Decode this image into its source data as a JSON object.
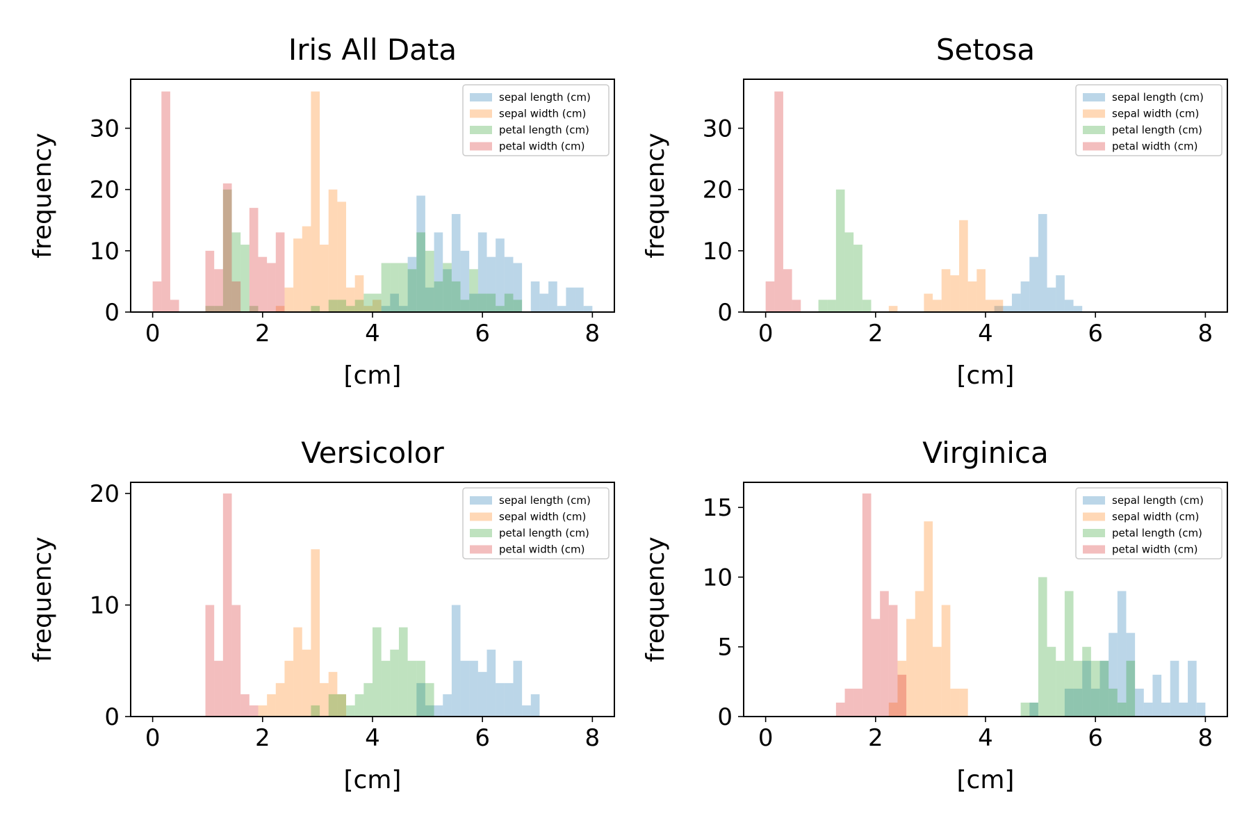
{
  "figure": {
    "series_colors": [
      "#1f77b4",
      "#ff7f0e",
      "#2ca02c",
      "#d62728"
    ],
    "bar_alpha": 0.3
  },
  "chart_data": [
    {
      "type": "bar",
      "title": "Iris All Data",
      "xlabel": "[cm]",
      "ylabel": "frequency",
      "xlim": [
        -0.4,
        8.4
      ],
      "ylim": [
        0,
        38
      ],
      "xticks": [
        "0",
        "2",
        "4",
        "6",
        "8"
      ],
      "yticks": [
        "0",
        "10",
        "20",
        "30"
      ],
      "bin_edges": [
        0,
        0.16,
        0.32,
        0.48,
        0.64,
        0.8,
        0.96,
        1.12,
        1.28,
        1.44,
        1.6,
        1.76,
        1.92,
        2.08,
        2.24,
        2.4,
        2.56,
        2.72,
        2.88,
        3.04,
        3.2,
        3.36,
        3.52,
        3.68,
        3.84,
        4.0,
        4.16,
        4.32,
        4.48,
        4.64,
        4.8,
        4.96,
        5.12,
        5.28,
        5.44,
        5.6,
        5.76,
        5.92,
        6.08,
        6.24,
        6.4,
        6.56,
        6.72,
        6.88,
        7.04,
        7.2,
        7.36,
        7.52,
        7.68,
        7.84,
        8.0
      ],
      "legend": {
        "position": "upper right",
        "entries": [
          "sepal length (cm)",
          "sepal width (cm)",
          "petal length (cm)",
          "petal width (cm)"
        ]
      },
      "series": [
        {
          "name": "sepal length (cm)",
          "values": [
            0,
            0,
            0,
            0,
            0,
            0,
            0,
            0,
            0,
            0,
            0,
            0,
            0,
            0,
            0,
            0,
            0,
            0,
            0,
            0,
            0,
            0,
            0,
            0,
            0,
            0,
            1,
            3,
            1,
            9,
            19,
            4,
            13,
            7,
            16,
            10,
            3,
            13,
            9,
            12,
            9,
            8,
            0,
            5,
            3,
            5,
            1,
            4,
            4,
            1
          ]
        },
        {
          "name": "sepal width (cm)",
          "values": [
            0,
            0,
            0,
            0,
            0,
            0,
            0,
            0,
            0,
            0,
            0,
            0,
            0,
            0,
            1,
            4,
            12,
            14,
            36,
            11,
            20,
            18,
            4,
            6,
            1,
            2,
            0,
            0,
            0,
            0,
            0,
            0,
            0,
            0,
            0,
            0,
            0,
            0,
            0,
            0,
            0,
            0,
            0,
            0,
            0,
            0,
            0,
            0,
            0,
            0
          ]
        },
        {
          "name": "petal length (cm)",
          "values": [
            0,
            0,
            0,
            0,
            0,
            0,
            1,
            1,
            20,
            13,
            11,
            1,
            0,
            0,
            0,
            0,
            0,
            0,
            1,
            0,
            2,
            2,
            1,
            2,
            3,
            3,
            8,
            8,
            8,
            7,
            13,
            10,
            5,
            8,
            5,
            2,
            7,
            3,
            3,
            1,
            3,
            2,
            0,
            0,
            0,
            0,
            0,
            0,
            0,
            0
          ]
        },
        {
          "name": "petal width (cm)",
          "values": [
            5,
            36,
            2,
            0,
            0,
            0,
            10,
            7,
            21,
            5,
            0,
            17,
            9,
            8,
            13,
            0,
            0,
            0,
            0,
            0,
            0,
            0,
            0,
            0,
            0,
            0,
            0,
            0,
            0,
            0,
            0,
            0,
            0,
            0,
            0,
            0,
            0,
            0,
            0,
            0,
            0,
            0,
            0,
            0,
            0,
            0,
            0,
            0,
            0,
            0
          ]
        }
      ]
    },
    {
      "type": "bar",
      "title": "Setosa",
      "xlabel": "[cm]",
      "ylabel": "frequency",
      "xlim": [
        -0.4,
        8.4
      ],
      "ylim": [
        0,
        38
      ],
      "xticks": [
        "0",
        "2",
        "4",
        "6",
        "8"
      ],
      "yticks": [
        "0",
        "10",
        "20",
        "30"
      ],
      "bin_edges": [
        0,
        0.16,
        0.32,
        0.48,
        0.64,
        0.8,
        0.96,
        1.12,
        1.28,
        1.44,
        1.6,
        1.76,
        1.92,
        2.08,
        2.24,
        2.4,
        2.56,
        2.72,
        2.88,
        3.04,
        3.2,
        3.36,
        3.52,
        3.68,
        3.84,
        4.0,
        4.16,
        4.32,
        4.48,
        4.64,
        4.8,
        4.96,
        5.12,
        5.28,
        5.44,
        5.6,
        5.76,
        5.92,
        6.08,
        6.24,
        6.4,
        6.56,
        6.72,
        6.88,
        7.04,
        7.2,
        7.36,
        7.52,
        7.68,
        7.84,
        8.0
      ],
      "legend": {
        "position": "upper right",
        "entries": [
          "sepal length (cm)",
          "sepal width (cm)",
          "petal length (cm)",
          "petal width (cm)"
        ]
      },
      "series": [
        {
          "name": "sepal length (cm)",
          "values": [
            0,
            0,
            0,
            0,
            0,
            0,
            0,
            0,
            0,
            0,
            0,
            0,
            0,
            0,
            0,
            0,
            0,
            0,
            0,
            0,
            0,
            0,
            0,
            0,
            0,
            0,
            1,
            1,
            3,
            5,
            9,
            16,
            4,
            6,
            2,
            1,
            0,
            0,
            0,
            0,
            0,
            0,
            0,
            0,
            0,
            0,
            0,
            0,
            0,
            0
          ]
        },
        {
          "name": "sepal width (cm)",
          "values": [
            0,
            0,
            0,
            0,
            0,
            0,
            0,
            0,
            0,
            0,
            0,
            0,
            0,
            0,
            1,
            0,
            0,
            0,
            3,
            2,
            7,
            6,
            15,
            5,
            7,
            2,
            2,
            0,
            0,
            0,
            0,
            0,
            0,
            0,
            0,
            0,
            0,
            0,
            0,
            0,
            0,
            0,
            0,
            0,
            0,
            0,
            0,
            0,
            0,
            0
          ]
        },
        {
          "name": "petal length (cm)",
          "values": [
            0,
            0,
            0,
            0,
            0,
            0,
            2,
            2,
            20,
            13,
            11,
            2,
            0,
            0,
            0,
            0,
            0,
            0,
            0,
            0,
            0,
            0,
            0,
            0,
            0,
            0,
            0,
            0,
            0,
            0,
            0,
            0,
            0,
            0,
            0,
            0,
            0,
            0,
            0,
            0,
            0,
            0,
            0,
            0,
            0,
            0,
            0,
            0,
            0,
            0
          ]
        },
        {
          "name": "petal width (cm)",
          "values": [
            5,
            36,
            7,
            2,
            0,
            0,
            0,
            0,
            0,
            0,
            0,
            0,
            0,
            0,
            0,
            0,
            0,
            0,
            0,
            0,
            0,
            0,
            0,
            0,
            0,
            0,
            0,
            0,
            0,
            0,
            0,
            0,
            0,
            0,
            0,
            0,
            0,
            0,
            0,
            0,
            0,
            0,
            0,
            0,
            0,
            0,
            0,
            0,
            0,
            0
          ]
        }
      ]
    },
    {
      "type": "bar",
      "title": "Versicolor",
      "xlabel": "[cm]",
      "ylabel": "frequency",
      "xlim": [
        -0.4,
        8.4
      ],
      "ylim": [
        0,
        21
      ],
      "xticks": [
        "0",
        "2",
        "4",
        "6",
        "8"
      ],
      "yticks": [
        "0",
        "10",
        "20"
      ],
      "bin_edges": [
        0,
        0.16,
        0.32,
        0.48,
        0.64,
        0.8,
        0.96,
        1.12,
        1.28,
        1.44,
        1.6,
        1.76,
        1.92,
        2.08,
        2.24,
        2.4,
        2.56,
        2.72,
        2.88,
        3.04,
        3.2,
        3.36,
        3.52,
        3.68,
        3.84,
        4.0,
        4.16,
        4.32,
        4.48,
        4.64,
        4.8,
        4.96,
        5.12,
        5.28,
        5.44,
        5.6,
        5.76,
        5.92,
        6.08,
        6.24,
        6.4,
        6.56,
        6.72,
        6.88,
        7.04,
        7.2,
        7.36,
        7.52,
        7.68,
        7.84,
        8.0
      ],
      "legend": {
        "position": "upper right",
        "entries": [
          "sepal length (cm)",
          "sepal width (cm)",
          "petal length (cm)",
          "petal width (cm)"
        ]
      },
      "series": [
        {
          "name": "sepal length (cm)",
          "values": [
            0,
            0,
            0,
            0,
            0,
            0,
            0,
            0,
            0,
            0,
            0,
            0,
            0,
            0,
            0,
            0,
            0,
            0,
            0,
            0,
            0,
            0,
            0,
            0,
            0,
            0,
            0,
            0,
            0,
            0,
            3,
            1,
            1,
            2,
            10,
            5,
            5,
            4,
            6,
            3,
            3,
            5,
            1,
            2,
            0,
            0,
            0,
            0,
            0,
            0
          ]
        },
        {
          "name": "sepal width (cm)",
          "values": [
            0,
            0,
            0,
            0,
            0,
            0,
            0,
            0,
            0,
            0,
            0,
            0,
            1,
            2,
            3,
            5,
            8,
            6,
            15,
            3,
            4,
            2,
            0,
            0,
            0,
            0,
            0,
            0,
            0,
            0,
            0,
            0,
            0,
            0,
            0,
            0,
            0,
            0,
            0,
            0,
            0,
            0,
            0,
            0,
            0,
            0,
            0,
            0,
            0,
            0
          ]
        },
        {
          "name": "petal length (cm)",
          "values": [
            0,
            0,
            0,
            0,
            0,
            0,
            0,
            0,
            0,
            0,
            0,
            0,
            0,
            0,
            0,
            0,
            0,
            0,
            1,
            0,
            2,
            2,
            1,
            2,
            3,
            8,
            5,
            6,
            8,
            5,
            5,
            3,
            0,
            0,
            0,
            0,
            0,
            0,
            0,
            0,
            0,
            0,
            0,
            0,
            0,
            0,
            0,
            0,
            0,
            0
          ]
        },
        {
          "name": "petal width (cm)",
          "values": [
            0,
            0,
            0,
            0,
            0,
            0,
            10,
            5,
            20,
            10,
            2,
            1,
            0,
            0,
            0,
            0,
            0,
            0,
            0,
            0,
            0,
            0,
            0,
            0,
            0,
            0,
            0,
            0,
            0,
            0,
            0,
            0,
            0,
            0,
            0,
            0,
            0,
            0,
            0,
            0,
            0,
            0,
            0,
            0,
            0,
            0,
            0,
            0,
            0,
            0
          ]
        }
      ]
    },
    {
      "type": "bar",
      "title": "Virginica",
      "xlabel": "[cm]",
      "ylabel": "frequency",
      "xlim": [
        -0.4,
        8.4
      ],
      "ylim": [
        0,
        16.8
      ],
      "xticks": [
        "0",
        "2",
        "4",
        "6",
        "8"
      ],
      "yticks": [
        "0",
        "5",
        "10",
        "15"
      ],
      "bin_edges": [
        0,
        0.16,
        0.32,
        0.48,
        0.64,
        0.8,
        0.96,
        1.12,
        1.28,
        1.44,
        1.6,
        1.76,
        1.92,
        2.08,
        2.24,
        2.4,
        2.56,
        2.72,
        2.88,
        3.04,
        3.2,
        3.36,
        3.52,
        3.68,
        3.84,
        4.0,
        4.16,
        4.32,
        4.48,
        4.64,
        4.8,
        4.96,
        5.12,
        5.28,
        5.44,
        5.6,
        5.76,
        5.92,
        6.08,
        6.24,
        6.4,
        6.56,
        6.72,
        6.88,
        7.04,
        7.2,
        7.36,
        7.52,
        7.68,
        7.84,
        8.0
      ],
      "legend": {
        "position": "upper right",
        "entries": [
          "sepal length (cm)",
          "sepal width (cm)",
          "petal length (cm)",
          "petal width (cm)"
        ]
      },
      "series": [
        {
          "name": "sepal length (cm)",
          "values": [
            0,
            0,
            0,
            0,
            0,
            0,
            0,
            0,
            0,
            0,
            0,
            0,
            0,
            0,
            0,
            0,
            0,
            0,
            0,
            0,
            0,
            0,
            0,
            0,
            0,
            0,
            0,
            0,
            0,
            0,
            1,
            0,
            0,
            0,
            2,
            2,
            4,
            2,
            4,
            6,
            9,
            6,
            2,
            1,
            3,
            1,
            4,
            1,
            4,
            1
          ]
        },
        {
          "name": "sepal width (cm)",
          "values": [
            0,
            0,
            0,
            0,
            0,
            0,
            0,
            0,
            0,
            0,
            0,
            0,
            0,
            0,
            1,
            4,
            7,
            9,
            14,
            5,
            8,
            2,
            2,
            0,
            0,
            0,
            0,
            0,
            0,
            0,
            0,
            0,
            0,
            0,
            0,
            0,
            0,
            0,
            0,
            0,
            0,
            0,
            0,
            0,
            0,
            0,
            0,
            0,
            0,
            0
          ]
        },
        {
          "name": "petal length (cm)",
          "values": [
            0,
            0,
            0,
            0,
            0,
            0,
            0,
            0,
            0,
            0,
            0,
            0,
            0,
            0,
            0,
            0,
            0,
            0,
            0,
            0,
            0,
            0,
            0,
            0,
            0,
            0,
            0,
            0,
            0,
            1,
            1,
            10,
            5,
            4,
            9,
            4,
            5,
            4,
            4,
            2,
            1,
            4,
            0,
            0,
            0,
            0,
            0,
            0,
            0,
            0
          ]
        },
        {
          "name": "petal width (cm)",
          "values": [
            0,
            0,
            0,
            0,
            0,
            0,
            0,
            0,
            1,
            2,
            2,
            16,
            7,
            9,
            8,
            3,
            0,
            0,
            0,
            0,
            0,
            0,
            0,
            0,
            0,
            0,
            0,
            0,
            0,
            0,
            0,
            0,
            0,
            0,
            0,
            0,
            0,
            0,
            0,
            0,
            0,
            0,
            0,
            0,
            0,
            0,
            0,
            0,
            0,
            0
          ]
        }
      ]
    }
  ]
}
